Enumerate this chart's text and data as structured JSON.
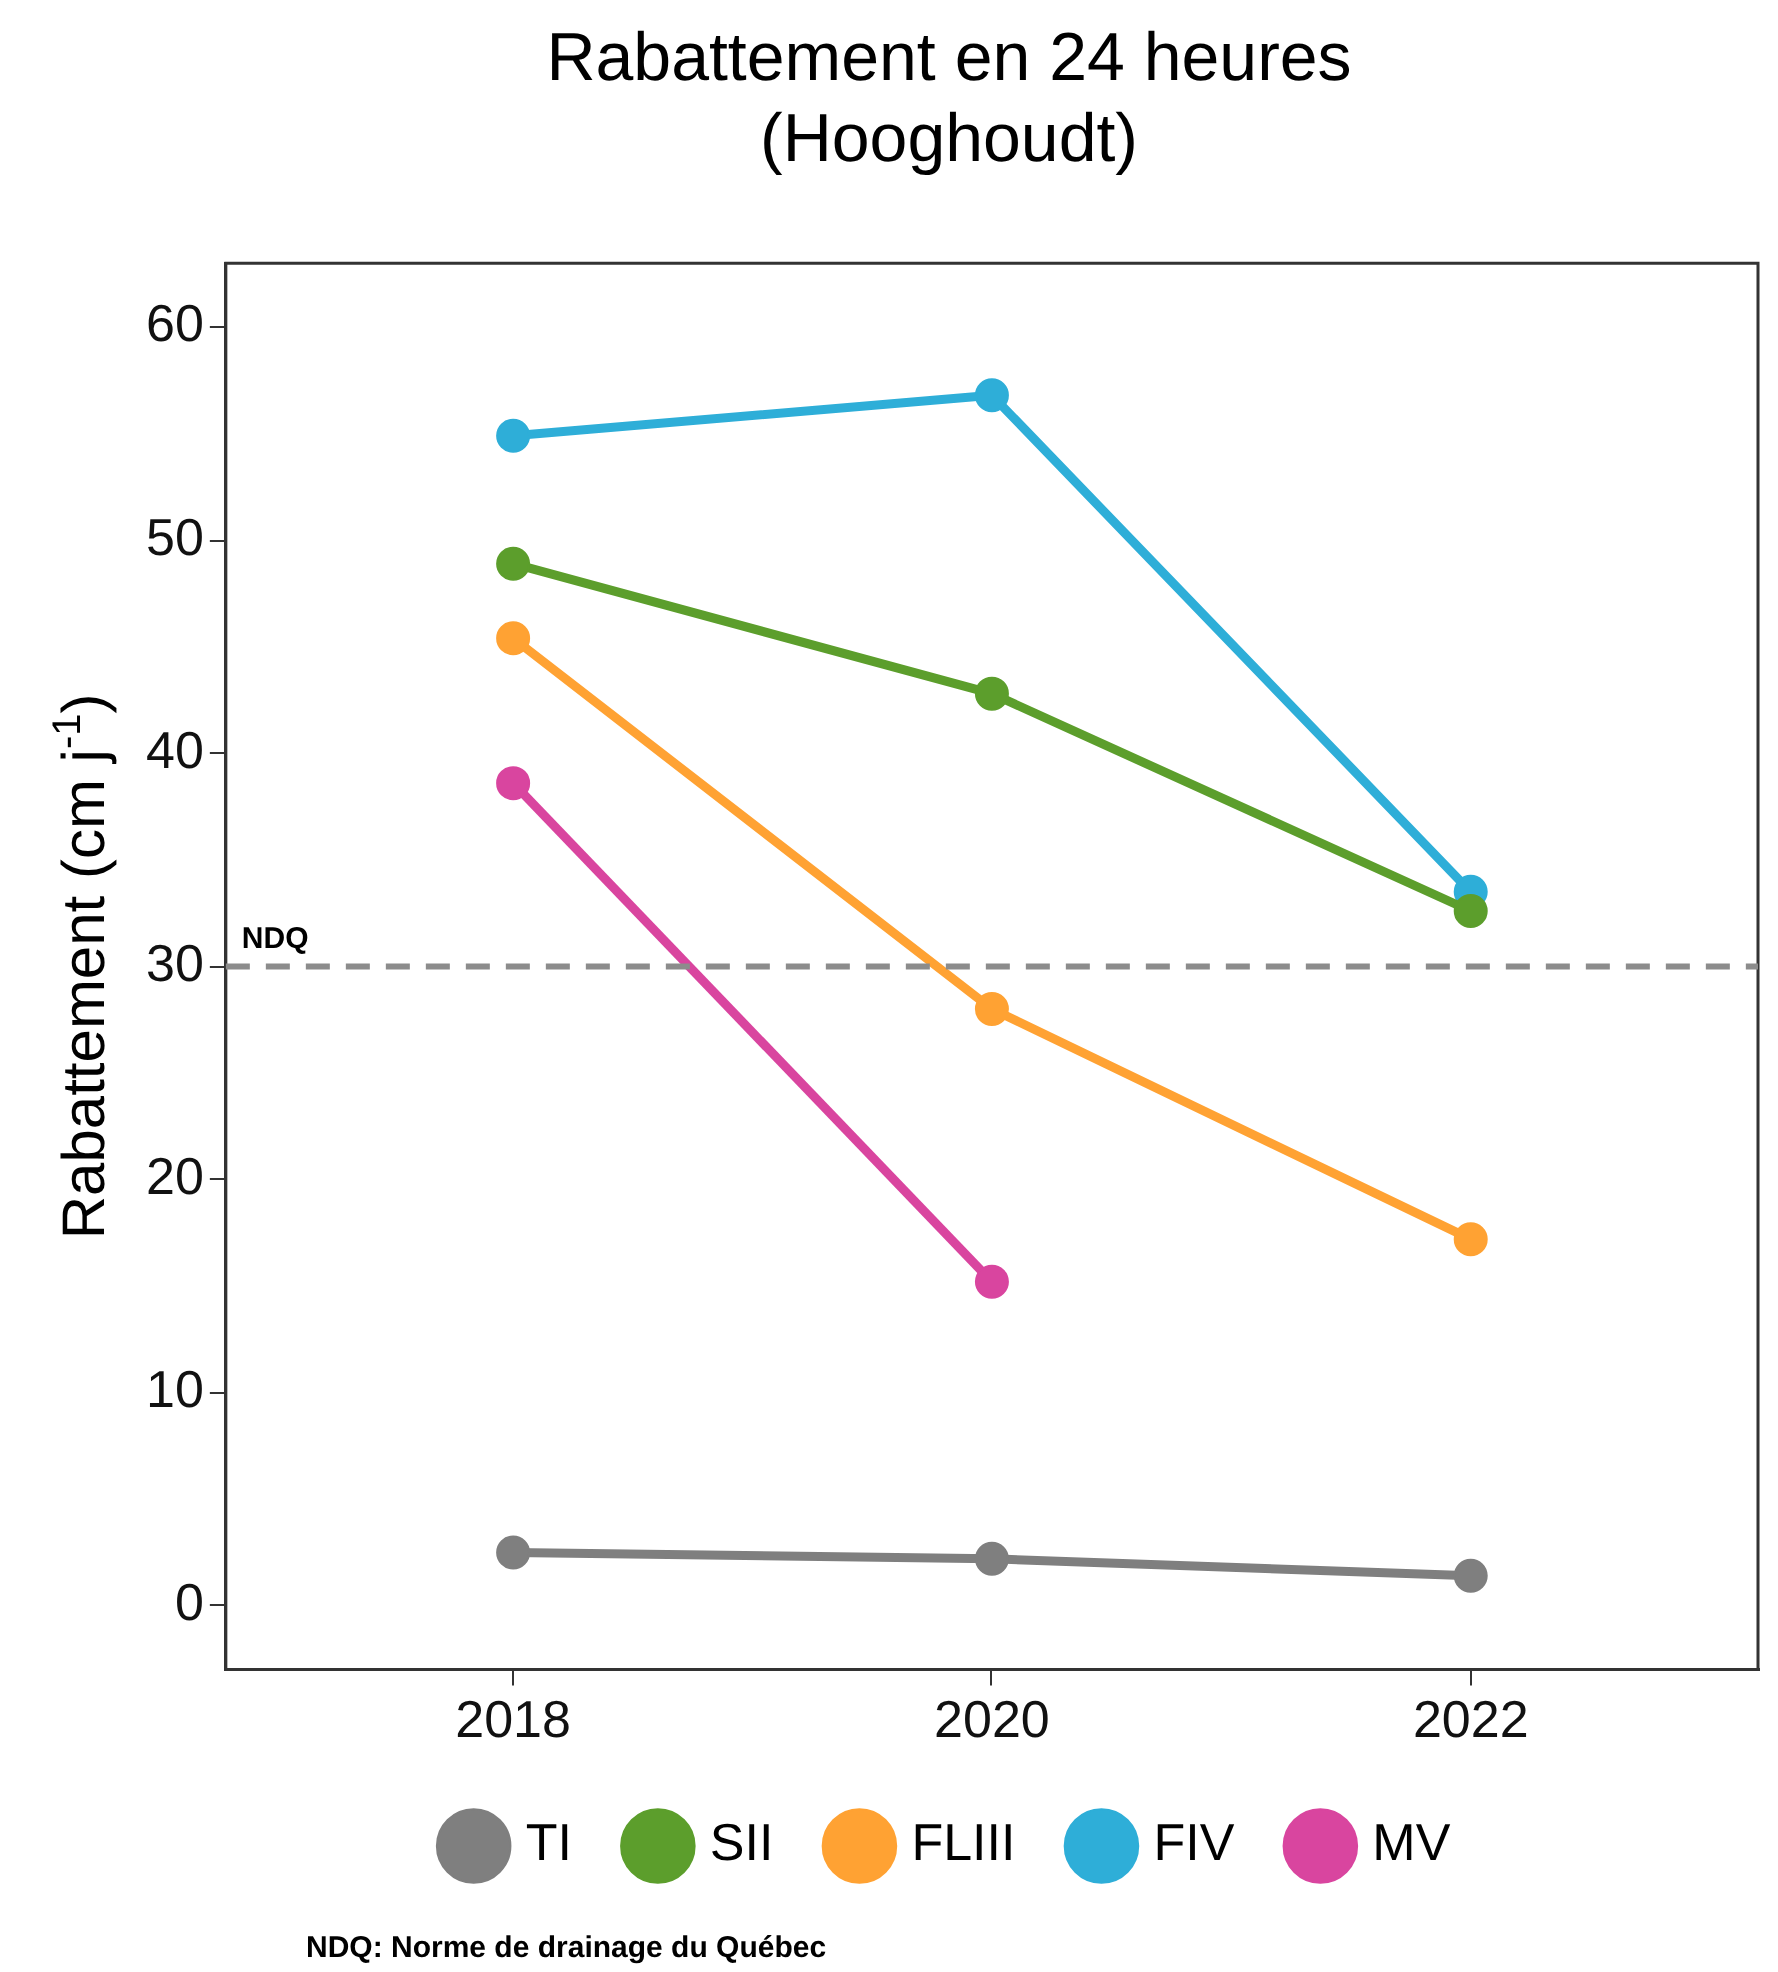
{
  "chart_data": {
    "type": "line",
    "title": "Rabattement en 24 heures\n(Hooghoudt)",
    "ylabel": "Rabattement (cm j$^{-1}$)",
    "x": [
      2018,
      2020,
      2022
    ],
    "xlim": [
      2016.8,
      2023.2
    ],
    "xticks": [
      2018,
      2020,
      2022
    ],
    "ylim": [
      -3,
      63
    ],
    "yticks": [
      0,
      10,
      20,
      30,
      40,
      50,
      60
    ],
    "series": [
      {
        "name": "TI",
        "color": "#7f7f7f",
        "values": [
          2.5,
          2.2,
          1.4
        ]
      },
      {
        "name": "SII",
        "color": "#5c9e2c",
        "values": [
          48.9,
          42.8,
          32.6
        ]
      },
      {
        "name": "FLIII",
        "color": "#ffa233",
        "values": [
          45.4,
          28.0,
          17.2
        ]
      },
      {
        "name": "FIV",
        "color": "#2eaed8",
        "values": [
          54.9,
          56.8,
          33.5
        ]
      },
      {
        "name": "MV",
        "color": "#d9459f",
        "values": [
          38.6,
          15.2,
          null
        ]
      }
    ],
    "ref_lines": [
      {
        "axis": "y",
        "value": 30,
        "label": "NDQ",
        "color": "#8c8c8c",
        "line_style": "dashed"
      }
    ],
    "annotations": [
      "NDQ: Norme de drainage du Québec"
    ],
    "marker": "circle",
    "line_style": "solid",
    "legend": "bottom",
    "grid": false
  }
}
